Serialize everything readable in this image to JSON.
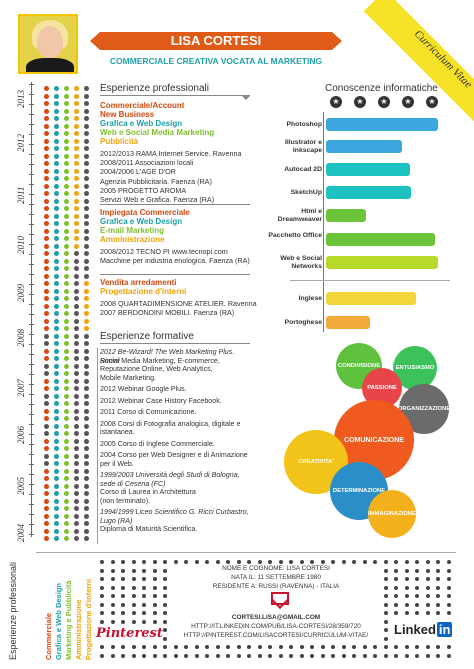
{
  "header": {
    "name": "LISA CORTESI",
    "subtitle": "COMMERCIALE CREATIVA VOCATA AL MARKETING",
    "ribbon": "Curriculum Vitae"
  },
  "years": [
    "2013",
    "2012",
    "2011",
    "2010",
    "2009",
    "2008",
    "2007",
    "2006",
    "2005",
    "2004"
  ],
  "experience": {
    "title": "Esperienze professionali",
    "jobs": [
      {
        "roles": [
          {
            "text": "Commerciale/Account",
            "color": "c1"
          },
          {
            "text": "New Business",
            "color": "c1"
          },
          {
            "text": "Grafica e Web Design",
            "color": "c2"
          },
          {
            "text": "Web e Social Media Marketing",
            "color": "c3"
          },
          {
            "text": "Pubblicità",
            "color": "c4"
          }
        ],
        "lines": [
          "2012/2013 RAMA Internet Service. Ravenna",
          "2008/2011 Associazioni locali",
          "2004/2006 L'AGE D'OR",
          "Agenzia Pubblicitaria. Faenza (RA)",
          "2005 PROGETTO AROMA",
          "Servizi Web e Grafica. Faenza (RA)"
        ]
      },
      {
        "roles": [
          {
            "text": "Impiegata Commerciale",
            "color": "c1"
          },
          {
            "text": "Grafica e Web Design",
            "color": "c2"
          },
          {
            "text": "E-mail Marketing",
            "color": "c3"
          },
          {
            "text": "Amministrazione",
            "color": "c4"
          }
        ],
        "lines": [
          "2008/2012 TECNO PI www.tecnopi.com",
          "Macchine per industria enologica. Faenza (RA)"
        ]
      },
      {
        "roles": [
          {
            "text": "Vendita arredamenti",
            "color": "c1"
          },
          {
            "text": "Progettazione d'interni",
            "color": "c4"
          }
        ],
        "lines": [
          "2008 QUARTADIMENSIONE ATELIER. Ravenna",
          "2007 BERDONDINI MOBILI. Faenza (RA)"
        ]
      }
    ]
  },
  "education": {
    "title": "Esperienze formative",
    "items": [
      "2012 Be-Wizard! The Web Marketing Plus. Rimini",
      "Social Media Marketing, E-commerce,",
      "Reputazione Online, Web Analytics,",
      "Mobile Marketing.",
      "",
      "2012 Webinar Google Plus.",
      "",
      "2012 Webinar Case History Facebook.",
      "",
      "2011 Corso di Comunicazione.",
      "",
      "2008 Corsi di Fotografia analogica, digitale e",
      "istantanea.",
      "",
      "2005 Corso di Inglese Commerciale.",
      "",
      "2004 Corso per Web Designer e di Animazione",
      "per il Web.",
      "",
      "1999/2003 Università degli Studi di Bologna,",
      "sede di Cesena (FC)",
      "Corso di Laurea in Architettura",
      "(non terminato).",
      "",
      "1994/1999 Liceo Scientifico G. Ricci  Curbastro,",
      "Lugo (RA)",
      "Diploma di Maturità Scientifica."
    ]
  },
  "skills": {
    "title": "Conoscenze informatiche",
    "stars": [
      "1",
      "2",
      "3",
      "4",
      "5"
    ],
    "items": [
      {
        "label": "Photoshop",
        "value": 0.93,
        "color": "#3aa7e0"
      },
      {
        "label": "Illustrator e Inkscape",
        "value": 0.63,
        "color": "#3aa7e0"
      },
      {
        "label": "Autocad 2D",
        "value": 0.7,
        "color": "#1ec2c0"
      },
      {
        "label": "SketchUp",
        "value": 0.71,
        "color": "#1ec2c0"
      },
      {
        "label": "Html e Dreamweaver",
        "value": 0.33,
        "color": "#6cc43a"
      },
      {
        "label": "Pacchetto Office",
        "value": 0.91,
        "color": "#6cc43a"
      },
      {
        "label": "Web e Social Networks",
        "value": 0.93,
        "color": "#b7d92a"
      },
      {
        "label": "Inglese",
        "value": 0.75,
        "color": "#f0d63a"
      },
      {
        "label": "Portoghese",
        "value": 0.37,
        "color": "#f0a93a"
      }
    ]
  },
  "bubbles": [
    {
      "label": "CONDIVISIONE",
      "color": "#5ec23d"
    },
    {
      "label": "ENTUSIASMO",
      "color": "#3cc25a"
    },
    {
      "label": "PASSIONE",
      "color": "#e8454a"
    },
    {
      "label": "ORGANIZZAZIONE",
      "color": "#6b6b6b"
    },
    {
      "label": "COMUNICAZIONE",
      "color": "#f05a1e"
    },
    {
      "label": "CREATIVITA'",
      "color": "#f2c41a"
    },
    {
      "label": "DETERMINAZIONE",
      "color": "#2b8ec8"
    },
    {
      "label": "IMMAGINAZIONE",
      "color": "#f2b01a"
    }
  ],
  "bottom_labels": [
    {
      "text": "Esperienze professionali",
      "color": "#333"
    },
    {
      "text": "Commerciale",
      "color": "#d44a10"
    },
    {
      "text": "Grafica e Web Design",
      "color": "#1d9fa7"
    },
    {
      "text": "Marketing e Pubblicità",
      "color": "#7fbf2e"
    },
    {
      "text": "Amministrazione",
      "color": "#f2a20a"
    },
    {
      "text": "Progettazione d'interni",
      "color": "#f2a20a"
    }
  ],
  "contact": {
    "line1": "NOME E COGNOME: LISA CORTESI",
    "line2": "NATA IL: 11 SETTEMBRE 1980",
    "line3": "RESIDENTE A: RUSSI (RAVENNA) - ITALIA",
    "email": "CORTESI.LISA@GMAIL.COM",
    "linkedin_url": "HTTP://IT.LINKEDIN.COM/PUB/LISA-CORTESI/28/359/720",
    "pinterest_url": "HTTP://PINTEREST.COM/LISACORTESI/CURRICULUM-VITAE/",
    "pinterest_logo": "Pinterest",
    "linkedin_logo_a": "Linked",
    "linkedin_logo_b": "in"
  }
}
